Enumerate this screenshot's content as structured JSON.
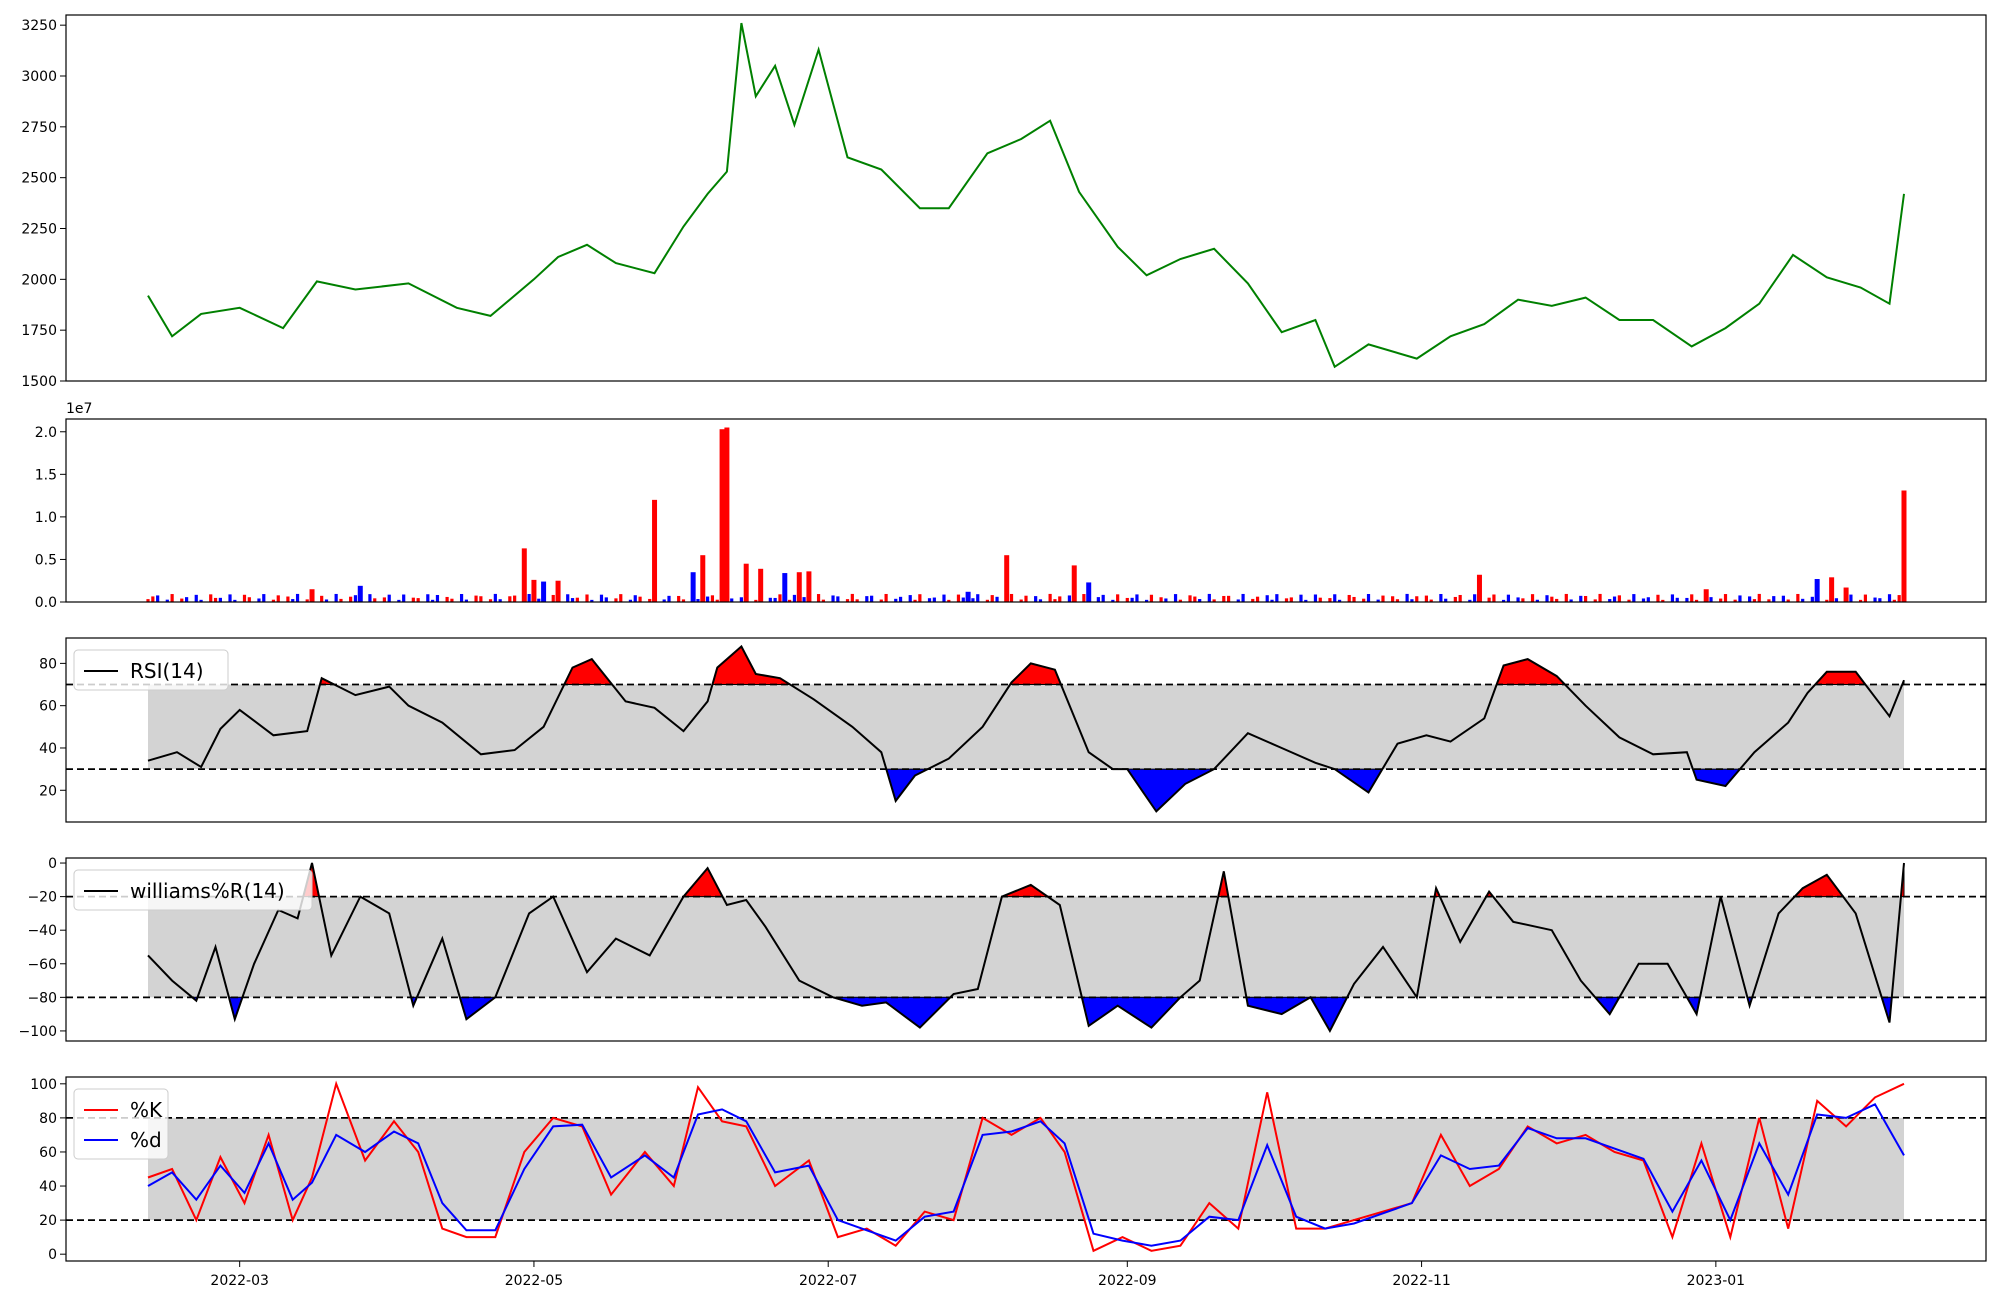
{
  "chart_data": [
    {
      "type": "line",
      "panel": "price",
      "color": "#008000",
      "ylim": [
        1500,
        3300
      ],
      "yticks": [
        1500,
        1750,
        2000,
        2250,
        2500,
        2750,
        3000,
        3250
      ],
      "ytick_labels": [
        "1500",
        "1750",
        "2000",
        "2250",
        "2500",
        "2750",
        "3000",
        "3250"
      ],
      "series": [
        {
          "x": [
            "2022-02-10",
            "2022-02-15",
            "2022-02-21",
            "2022-03-01",
            "2022-03-10",
            "2022-03-17",
            "2022-03-25",
            "2022-04-05",
            "2022-04-15",
            "2022-04-22",
            "2022-05-01",
            "2022-05-06",
            "2022-05-12",
            "2022-05-18",
            "2022-05-26",
            "2022-06-01",
            "2022-06-06",
            "2022-06-10",
            "2022-06-13",
            "2022-06-16",
            "2022-06-20",
            "2022-06-24",
            "2022-06-29",
            "2022-07-05",
            "2022-07-12",
            "2022-07-20",
            "2022-07-26",
            "2022-08-03",
            "2022-08-10",
            "2022-08-16",
            "2022-08-22",
            "2022-08-30",
            "2022-09-05",
            "2022-09-12",
            "2022-09-19",
            "2022-09-26",
            "2022-10-03",
            "2022-10-10",
            "2022-10-14",
            "2022-10-21",
            "2022-10-31",
            "2022-11-07",
            "2022-11-14",
            "2022-11-21",
            "2022-11-28",
            "2022-12-05",
            "2022-12-12",
            "2022-12-19",
            "2022-12-27",
            "2023-01-03",
            "2023-01-10",
            "2023-01-17",
            "2023-01-24",
            "2023-01-31",
            "2023-02-06",
            "2023-02-09"
          ],
          "values": [
            1920,
            1720,
            1830,
            1860,
            1760,
            1990,
            1950,
            1980,
            1860,
            1820,
            2000,
            2110,
            2170,
            2080,
            2030,
            2260,
            2420,
            2530,
            3260,
            2900,
            3050,
            2760,
            3130,
            2600,
            2540,
            2350,
            2350,
            2620,
            2690,
            2780,
            2430,
            2160,
            2020,
            2100,
            2150,
            1980,
            1740,
            1800,
            1570,
            1680,
            1610,
            1720,
            1780,
            1900,
            1870,
            1910,
            1800,
            1800,
            1670,
            1760,
            1880,
            2120,
            2010,
            1960,
            1880,
            2420
          ]
        }
      ]
    },
    {
      "type": "bar",
      "panel": "volume",
      "multiplier_label": "1e7",
      "ylim": [
        0,
        21500000
      ],
      "yticks": [
        0,
        5000000,
        10000000,
        15000000,
        20000000
      ],
      "ytick_labels": [
        "0.0",
        "0.5",
        "1.0",
        "1.5",
        "2.0"
      ],
      "up_color": "#ff0000",
      "down_color": "#0000ff",
      "series": [
        {
          "x": [
            "2022-03-16",
            "2022-03-26",
            "2022-04-29",
            "2022-05-01",
            "2022-05-03",
            "2022-05-06",
            "2022-05-26",
            "2022-06-03",
            "2022-06-05",
            "2022-06-09",
            "2022-06-10",
            "2022-06-14",
            "2022-06-17",
            "2022-06-22",
            "2022-06-25",
            "2022-06-27",
            "2022-07-30",
            "2022-08-07",
            "2022-08-21",
            "2022-08-24",
            "2022-11-13",
            "2022-12-30",
            "2023-01-22",
            "2023-01-25",
            "2023-01-28",
            "2023-02-09"
          ],
          "values": [
            1500000,
            1900000,
            6300000,
            2600000,
            2400000,
            2500000,
            12000000,
            3500000,
            5500000,
            20300000,
            20500000,
            4500000,
            3900000,
            3400000,
            3500000,
            3600000,
            1200000,
            5500000,
            4300000,
            2300000,
            3200000,
            1500000,
            2700000,
            2900000,
            1700000,
            13100000
          ]
        }
      ]
    },
    {
      "type": "area",
      "panel": "rsi",
      "ylim": [
        5,
        92
      ],
      "yticks": [
        20,
        40,
        60,
        80
      ],
      "ytick_labels": [
        "20",
        "40",
        "60",
        "80"
      ],
      "band": [
        30,
        70
      ],
      "upper_fill": "#ff0000",
      "lower_fill": "#0000ff",
      "band_fill": "#d3d3d3",
      "legend": [
        "RSI(14)"
      ],
      "series": [
        {
          "name": "RSI(14)",
          "x": [
            "2022-02-10",
            "2022-02-16",
            "2022-02-21",
            "2022-02-25",
            "2022-03-01",
            "2022-03-08",
            "2022-03-15",
            "2022-03-18",
            "2022-03-25",
            "2022-04-01",
            "2022-04-05",
            "2022-04-12",
            "2022-04-20",
            "2022-04-27",
            "2022-05-03",
            "2022-05-09",
            "2022-05-13",
            "2022-05-20",
            "2022-05-26",
            "2022-06-01",
            "2022-06-06",
            "2022-06-08",
            "2022-06-13",
            "2022-06-16",
            "2022-06-21",
            "2022-06-28",
            "2022-07-06",
            "2022-07-12",
            "2022-07-15",
            "2022-07-19",
            "2022-07-26",
            "2022-08-02",
            "2022-08-08",
            "2022-08-12",
            "2022-08-17",
            "2022-08-24",
            "2022-08-29",
            "2022-09-01",
            "2022-09-07",
            "2022-09-13",
            "2022-09-19",
            "2022-09-26",
            "2022-10-03",
            "2022-10-10",
            "2022-10-14",
            "2022-10-21",
            "2022-10-27",
            "2022-11-02",
            "2022-11-07",
            "2022-11-14",
            "2022-11-18",
            "2022-11-23",
            "2022-11-29",
            "2022-12-05",
            "2022-12-12",
            "2022-12-19",
            "2022-12-26",
            "2022-12-28",
            "2023-01-03",
            "2023-01-09",
            "2023-01-16",
            "2023-01-20",
            "2023-01-24",
            "2023-01-30",
            "2023-02-06",
            "2023-02-09"
          ],
          "values": [
            34,
            38,
            31,
            49,
            58,
            46,
            48,
            73,
            65,
            69,
            60,
            52,
            37,
            39,
            50,
            78,
            82,
            62,
            59,
            48,
            62,
            78,
            88,
            75,
            73,
            63,
            50,
            38,
            15,
            27,
            35,
            50,
            71,
            80,
            77,
            38,
            30,
            30,
            10,
            23,
            30,
            47,
            40,
            33,
            30,
            19,
            42,
            46,
            43,
            54,
            79,
            82,
            74,
            60,
            45,
            37,
            38,
            25,
            22,
            38,
            52,
            66,
            76,
            76,
            55,
            72
          ]
        }
      ]
    },
    {
      "type": "area",
      "panel": "williams",
      "ylim": [
        -106,
        3
      ],
      "yticks": [
        -100,
        -80,
        -60,
        -40,
        -20,
        0
      ],
      "ytick_labels": [
        "−100",
        "−80",
        "−60",
        "−40",
        "−20",
        "0"
      ],
      "band": [
        -80,
        -20
      ],
      "upper_fill": "#ff0000",
      "lower_fill": "#0000ff",
      "band_fill": "#d3d3d3",
      "legend": [
        "williams%R(14)"
      ],
      "series": [
        {
          "name": "williams%R(14)",
          "x": [
            "2022-02-10",
            "2022-02-15",
            "2022-02-20",
            "2022-02-24",
            "2022-02-28",
            "2022-03-04",
            "2022-03-09",
            "2022-03-13",
            "2022-03-16",
            "2022-03-20",
            "2022-03-26",
            "2022-04-01",
            "2022-04-06",
            "2022-04-12",
            "2022-04-17",
            "2022-04-23",
            "2022-04-30",
            "2022-05-05",
            "2022-05-12",
            "2022-05-18",
            "2022-05-25",
            "2022-06-01",
            "2022-06-06",
            "2022-06-10",
            "2022-06-14",
            "2022-06-18",
            "2022-06-25",
            "2022-07-02",
            "2022-07-08",
            "2022-07-13",
            "2022-07-20",
            "2022-07-27",
            "2022-08-01",
            "2022-08-06",
            "2022-08-12",
            "2022-08-18",
            "2022-08-24",
            "2022-08-30",
            "2022-09-06",
            "2022-09-12",
            "2022-09-16",
            "2022-09-21",
            "2022-09-26",
            "2022-10-03",
            "2022-10-09",
            "2022-10-13",
            "2022-10-18",
            "2022-10-24",
            "2022-10-31",
            "2022-11-04",
            "2022-11-09",
            "2022-11-15",
            "2022-11-20",
            "2022-11-28",
            "2022-12-04",
            "2022-12-10",
            "2022-12-16",
            "2022-12-22",
            "2022-12-28",
            "2023-01-02",
            "2023-01-08",
            "2023-01-14",
            "2023-01-19",
            "2023-01-24",
            "2023-01-30",
            "2023-02-06",
            "2023-02-09"
          ],
          "values": [
            -55,
            -70,
            -82,
            -50,
            -93,
            -60,
            -28,
            -33,
            0,
            -55,
            -20,
            -30,
            -85,
            -45,
            -93,
            -80,
            -30,
            -20,
            -65,
            -45,
            -55,
            -20,
            -3,
            -25,
            -22,
            -38,
            -70,
            -80,
            -85,
            -83,
            -98,
            -78,
            -75,
            -20,
            -13,
            -25,
            -97,
            -85,
            -98,
            -80,
            -70,
            -5,
            -85,
            -90,
            -80,
            -100,
            -72,
            -50,
            -80,
            -15,
            -47,
            -17,
            -35,
            -40,
            -70,
            -90,
            -60,
            -60,
            -90,
            -20,
            -85,
            -30,
            -15,
            -7,
            -30,
            -95,
            0
          ]
        }
      ]
    },
    {
      "type": "line",
      "panel": "stochastic",
      "ylim": [
        -4,
        104
      ],
      "yticks": [
        0,
        20,
        40,
        60,
        80,
        100
      ],
      "ytick_labels": [
        "0",
        "20",
        "40",
        "60",
        "80",
        "100"
      ],
      "band": [
        20,
        80
      ],
      "band_fill": "#d3d3d3",
      "legend": [
        "%K",
        "%d"
      ],
      "x": [
        "2022-02-10",
        "2022-02-15",
        "2022-02-20",
        "2022-02-25",
        "2022-03-02",
        "2022-03-07",
        "2022-03-12",
        "2022-03-16",
        "2022-03-21",
        "2022-03-27",
        "2022-04-02",
        "2022-04-07",
        "2022-04-12",
        "2022-04-17",
        "2022-04-23",
        "2022-04-29",
        "2022-05-05",
        "2022-05-11",
        "2022-05-17",
        "2022-05-24",
        "2022-05-30",
        "2022-06-04",
        "2022-06-09",
        "2022-06-14",
        "2022-06-20",
        "2022-06-27",
        "2022-07-03",
        "2022-07-09",
        "2022-07-15",
        "2022-07-21",
        "2022-07-27",
        "2022-08-02",
        "2022-08-08",
        "2022-08-14",
        "2022-08-19",
        "2022-08-25",
        "2022-08-31",
        "2022-09-06",
        "2022-09-12",
        "2022-09-18",
        "2022-09-24",
        "2022-09-30",
        "2022-10-06",
        "2022-10-12",
        "2022-10-18",
        "2022-10-24",
        "2022-10-30",
        "2022-11-05",
        "2022-11-11",
        "2022-11-17",
        "2022-11-23",
        "2022-11-29",
        "2022-12-05",
        "2022-12-11",
        "2022-12-17",
        "2022-12-23",
        "2022-12-29",
        "2023-01-04",
        "2023-01-10",
        "2023-01-16",
        "2023-01-22",
        "2023-01-28",
        "2023-02-03",
        "2023-02-09"
      ],
      "series": [
        {
          "name": "%K",
          "color": "#ff0000",
          "values": [
            45,
            50,
            20,
            57,
            30,
            70,
            20,
            45,
            100,
            55,
            78,
            60,
            15,
            10,
            10,
            60,
            80,
            75,
            35,
            60,
            40,
            98,
            78,
            75,
            40,
            55,
            10,
            15,
            5,
            25,
            20,
            80,
            70,
            80,
            60,
            2,
            10,
            2,
            5,
            30,
            15,
            95,
            15,
            15,
            20,
            25,
            30,
            70,
            40,
            50,
            75,
            65,
            70,
            60,
            55,
            10,
            65,
            10,
            80,
            15,
            90,
            75,
            92,
            100
          ],
          "name_in_legend": "%K"
        },
        {
          "name": "%d",
          "color": "#0000ff",
          "values": [
            40,
            48,
            32,
            52,
            36,
            65,
            32,
            42,
            70,
            60,
            72,
            65,
            30,
            14,
            14,
            50,
            75,
            76,
            45,
            58,
            45,
            82,
            85,
            78,
            48,
            52,
            20,
            14,
            8,
            22,
            25,
            70,
            72,
            78,
            65,
            12,
            8,
            5,
            8,
            22,
            20,
            64,
            22,
            15,
            18,
            24,
            30,
            58,
            50,
            52,
            74,
            68,
            68,
            62,
            56,
            25,
            55,
            20,
            65,
            35,
            82,
            80,
            88,
            58
          ]
        }
      ]
    }
  ],
  "x_axis": {
    "tick_dates": [
      "2022-03-01",
      "2022-05-01",
      "2022-07-01",
      "2022-09-01",
      "2022-11-01",
      "2023-01-01"
    ],
    "tick_labels": [
      "2022-03",
      "2022-05",
      "2022-07",
      "2022-09",
      "2022-11",
      "2023-01"
    ]
  }
}
